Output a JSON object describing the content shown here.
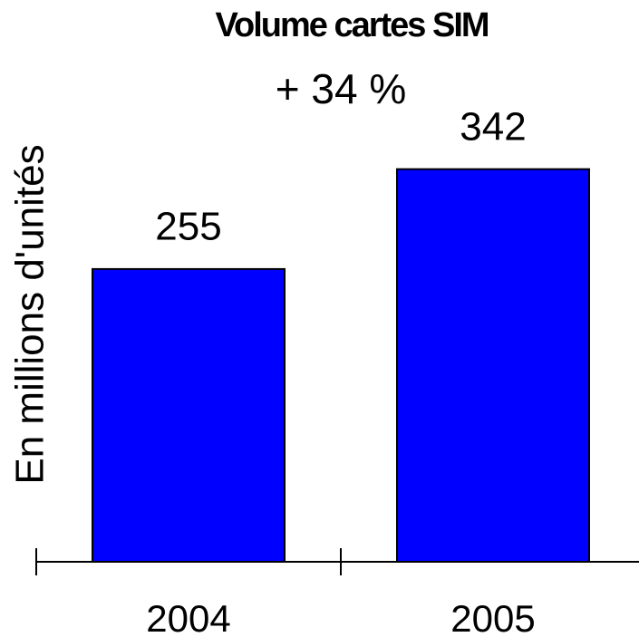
{
  "chart_data": {
    "type": "bar",
    "title": "Volume cartes SIM",
    "annotation": "+ 34 %",
    "y_label": "En millions d'unités",
    "categories": [
      "2004",
      "2005"
    ],
    "values": [
      255,
      342
    ],
    "color": "#0000ff"
  }
}
